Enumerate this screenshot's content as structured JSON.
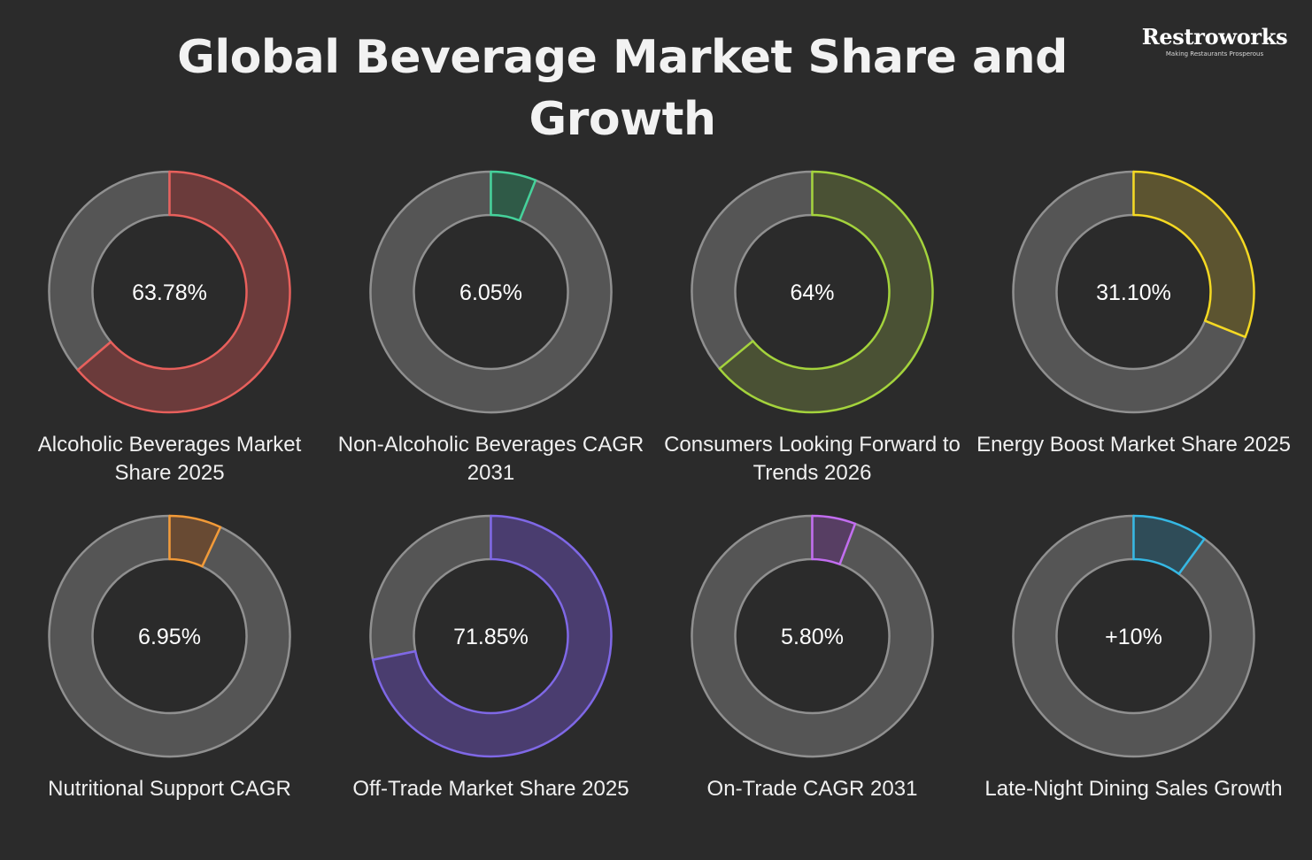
{
  "header": {
    "title": "Global Beverage Market Share and Growth"
  },
  "logo": {
    "wordmark": "Restroworks",
    "tagline": "Making Restaurants Prosperous"
  },
  "chart_data": [
    {
      "type": "pie",
      "label": "Alcoholic Beverages Market Share 2025",
      "value_text": "63.78%",
      "value": 63.78,
      "max": 100,
      "color": "#e8605c",
      "fill_color": "#6b3b3b"
    },
    {
      "type": "pie",
      "label": "Non-Alcoholic Beverages CAGR 2031",
      "value_text": "6.05%",
      "value": 6.05,
      "max": 100,
      "color": "#45d29b",
      "fill_color": "#2f5a47"
    },
    {
      "type": "pie",
      "label": "Consumers Looking Forward to Trends 2026",
      "value_text": "64%",
      "value": 64,
      "max": 100,
      "color": "#a4d33c",
      "fill_color": "#4a5134"
    },
    {
      "type": "pie",
      "label": "Energy Boost Market Share 2025",
      "value_text": "31.10%",
      "value": 31.1,
      "max": 100,
      "color": "#f5d922",
      "fill_color": "#5c5430"
    },
    {
      "type": "pie",
      "label": "Nutritional Support CAGR",
      "value_text": "6.95%",
      "value": 6.95,
      "max": 100,
      "color": "#f29a38",
      "fill_color": "#684a33"
    },
    {
      "type": "pie",
      "label": "Off-Trade Market Share 2025",
      "value_text": "71.85%",
      "value": 71.85,
      "max": 100,
      "color": "#7f68e6",
      "fill_color": "#4a3d6f"
    },
    {
      "type": "pie",
      "label": "On-Trade CAGR 2031",
      "value_text": "5.80%",
      "value": 5.8,
      "max": 100,
      "color": "#c26df0",
      "fill_color": "#573e63"
    },
    {
      "type": "pie",
      "label": "Late-Night Dining Sales Growth",
      "value_text": "+10%",
      "value": 10,
      "max": 100,
      "color": "#35b8e4",
      "fill_color": "#2f4c58"
    }
  ],
  "colors": {
    "background": "#2b2b2b",
    "track": "#555555",
    "track_stroke": "#909090"
  }
}
